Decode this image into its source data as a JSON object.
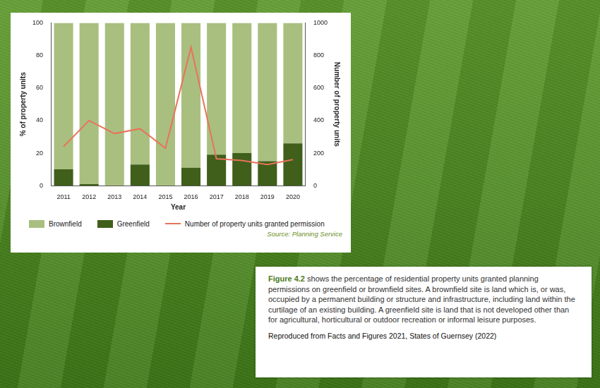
{
  "chart_data": {
    "type": "bar",
    "stacked": true,
    "grid": false,
    "legend": "bottom",
    "x_label": "Year",
    "y_label": "% of property units",
    "y2_label": "Number of property units",
    "categories": [
      "2011",
      "2012",
      "2013",
      "2014",
      "2015",
      "2016",
      "2017",
      "2018",
      "2019",
      "2020"
    ],
    "series": [
      {
        "name": "Brownfield",
        "color": "#a9bf80",
        "values": [
          90,
          99,
          100,
          87,
          100,
          89,
          81,
          80,
          85,
          74
        ]
      },
      {
        "name": "Greenfield",
        "color": "#3f5f1b",
        "values": [
          10,
          1,
          0,
          13,
          0,
          11,
          19,
          20,
          15,
          26
        ]
      },
      {
        "name": "Number of property units granted permission",
        "type": "line",
        "axis": "y2",
        "color": "#e8735a",
        "marker": "none",
        "line_style": "solid",
        "values": [
          240,
          400,
          320,
          350,
          230,
          850,
          165,
          155,
          130,
          160
        ]
      }
    ],
    "ylim": [
      0,
      100
    ],
    "yticks": [
      0,
      20,
      40,
      60,
      80,
      100
    ],
    "y2lim": [
      0,
      1000
    ],
    "y2ticks": [
      0,
      200,
      400,
      600,
      800,
      1000
    ],
    "source": "Source: Planning Service"
  },
  "caption": {
    "figure": "Figure 4.2",
    "text": "shows the percentage of residential property units granted planning permissions on greenfield or brownfield sites. A brownfield site is land which is, or was, occupied by a permanent building or structure and infrastructure, including land within the curtilage of an existing building. A greenfield site is land that is not developed other than for agricultural, horticultural or outdoor recreation or informal leisure purposes."
  },
  "credit": "Reproduced from Facts and Figures 2021, States of Guernsey (2022)"
}
